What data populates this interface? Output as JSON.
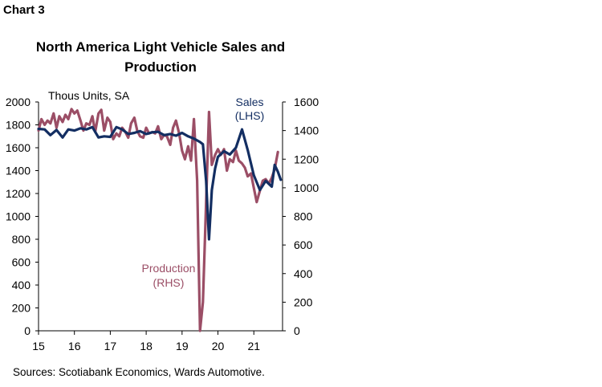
{
  "header": {
    "chart_number": "Chart 3"
  },
  "footer": {
    "source": "Sources: Scotiabank Economics, Wards Automotive."
  },
  "chart_data": {
    "type": "line",
    "title": "North America Light Vehicle Sales and Production",
    "title_lines": [
      "North America Light Vehicle Sales and",
      "Production"
    ],
    "units_label": "Thous Units, SA",
    "x_tick_labels": [
      "15",
      "16",
      "17",
      "18",
      "19",
      "20",
      "21"
    ],
    "xlim": [
      2015.0,
      2021.8
    ],
    "y_left": {
      "lim": [
        0,
        2000
      ],
      "ticks": [
        "0",
        "200",
        "400",
        "600",
        "800",
        "1000",
        "1200",
        "1400",
        "1600",
        "1800",
        "2000"
      ]
    },
    "y_right": {
      "lim": [
        0,
        1600
      ],
      "ticks": [
        "0",
        "200",
        "400",
        "600",
        "800",
        "1000",
        "1200",
        "1400",
        "1600"
      ]
    },
    "grid": false,
    "series": [
      {
        "name": "Sales (LHS)",
        "label_lines": [
          "Sales",
          "(LHS)"
        ],
        "axis": "left",
        "color": "#132E62",
        "x": [
          2015.0,
          2015.17,
          2015.33,
          2015.5,
          2015.67,
          2015.83,
          2016.0,
          2016.17,
          2016.33,
          2016.5,
          2016.67,
          2016.83,
          2017.0,
          2017.17,
          2017.33,
          2017.5,
          2017.67,
          2017.83,
          2018.0,
          2018.17,
          2018.33,
          2018.5,
          2018.67,
          2018.83,
          2019.0,
          2019.17,
          2019.33,
          2019.5,
          2019.58,
          2019.67,
          2019.75,
          2019.83,
          2019.92,
          2020.0,
          2020.17,
          2020.33,
          2020.5,
          2020.67,
          2020.83,
          2021.0,
          2021.17,
          2021.33,
          2021.5,
          2021.58,
          2021.67,
          2021.75
        ],
        "values": [
          1765,
          1760,
          1710,
          1755,
          1690,
          1760,
          1750,
          1770,
          1760,
          1780,
          1690,
          1700,
          1695,
          1780,
          1760,
          1720,
          1730,
          1745,
          1720,
          1735,
          1740,
          1710,
          1720,
          1705,
          1730,
          1700,
          1680,
          1650,
          1630,
          1310,
          800,
          1230,
          1420,
          1520,
          1570,
          1540,
          1600,
          1760,
          1580,
          1360,
          1230,
          1310,
          1260,
          1450,
          1390,
          1320
        ]
      },
      {
        "name": "Production (RHS)",
        "label_lines": [
          "Production",
          "(RHS)"
        ],
        "axis": "right",
        "color": "#9B4E66",
        "x": [
          2015.0,
          2015.08,
          2015.17,
          2015.25,
          2015.33,
          2015.42,
          2015.5,
          2015.58,
          2015.67,
          2015.75,
          2015.83,
          2015.92,
          2016.0,
          2016.08,
          2016.17,
          2016.25,
          2016.33,
          2016.42,
          2016.5,
          2016.58,
          2016.67,
          2016.75,
          2016.83,
          2016.92,
          2017.0,
          2017.08,
          2017.17,
          2017.25,
          2017.33,
          2017.42,
          2017.5,
          2017.58,
          2017.67,
          2017.75,
          2017.83,
          2017.92,
          2018.0,
          2018.08,
          2018.17,
          2018.25,
          2018.33,
          2018.42,
          2018.5,
          2018.58,
          2018.67,
          2018.75,
          2018.83,
          2018.92,
          2019.0,
          2019.08,
          2019.17,
          2019.25,
          2019.33,
          2019.42,
          2019.5,
          2019.58,
          2019.67,
          2019.75,
          2019.83,
          2019.92,
          2020.0,
          2020.08,
          2020.17,
          2020.25,
          2020.33,
          2020.42,
          2020.5,
          2020.58,
          2020.67,
          2020.75,
          2020.83,
          2020.92,
          2021.0,
          2021.08,
          2021.17,
          2021.25,
          2021.33,
          2021.42,
          2021.5,
          2021.58,
          2021.67
        ],
        "values": [
          1400,
          1480,
          1440,
          1470,
          1450,
          1520,
          1420,
          1500,
          1460,
          1510,
          1480,
          1550,
          1520,
          1540,
          1470,
          1400,
          1450,
          1440,
          1500,
          1390,
          1520,
          1545,
          1400,
          1490,
          1460,
          1340,
          1380,
          1360,
          1420,
          1390,
          1350,
          1450,
          1490,
          1400,
          1360,
          1350,
          1420,
          1380,
          1390,
          1380,
          1430,
          1340,
          1370,
          1360,
          1300,
          1420,
          1470,
          1380,
          1260,
          1200,
          1290,
          1190,
          1480,
          1050,
          0,
          200,
          900,
          1530,
          1160,
          1230,
          1270,
          1230,
          1270,
          1120,
          1200,
          1180,
          1260,
          1190,
          1170,
          1140,
          1080,
          1100,
          1000,
          900,
          980,
          1050,
          1060,
          1030,
          1070,
          1130,
          1250
        ]
      }
    ]
  }
}
